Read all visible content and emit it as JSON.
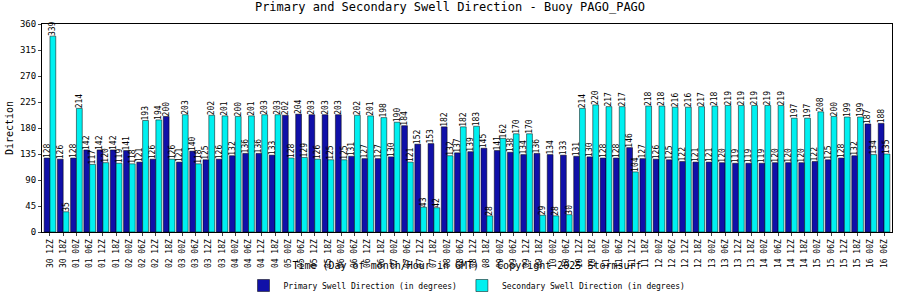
{
  "chart_data": {
    "type": "bar",
    "title": "Primary and Secondary Swell Direction - Buoy PAGO_PAGO",
    "x_label": "Time (Day of month/Hour in GMT) - Copyright 2025 Stormsurf",
    "y_label": "Direction",
    "categories": [
      "30 12Z",
      "30 18Z",
      "01 00Z",
      "01 06Z",
      "01 12Z",
      "01 18Z",
      "02 00Z",
      "02 06Z",
      "02 12Z",
      "02 18Z",
      "03 00Z",
      "03 06Z",
      "03 12Z",
      "03 18Z",
      "04 00Z",
      "04 06Z",
      "04 12Z",
      "04 18Z",
      "05 00Z",
      "05 06Z",
      "05 12Z",
      "05 18Z",
      "06 00Z",
      "06 06Z",
      "06 12Z",
      "06 18Z",
      "07 00Z",
      "07 06Z",
      "07 12Z",
      "07 18Z",
      "08 00Z",
      "08 06Z",
      "08 12Z",
      "08 18Z",
      "09 00Z",
      "09 06Z",
      "09 12Z",
      "09 18Z",
      "10 00Z",
      "10 06Z",
      "10 12Z",
      "10 18Z",
      "11 00Z",
      "11 06Z",
      "11 12Z",
      "11 18Z",
      "12 00Z",
      "12 06Z",
      "12 12Z",
      "12 18Z",
      "13 00Z",
      "13 06Z",
      "13 12Z",
      "13 18Z",
      "14 00Z",
      "14 06Z",
      "14 12Z",
      "14 18Z",
      "15 00Z",
      "15 06Z",
      "15 12Z",
      "15 18Z",
      "16 00Z",
      "16 06Z"
    ],
    "series": [
      {
        "name": "Primary Swell Direction (in degrees)",
        "color": "#1010a8",
        "values": [
          128,
          126,
          128,
          142,
          142,
          142,
          141,
          121,
          126,
          200,
          121,
          140,
          125,
          126,
          132,
          136,
          136,
          133,
          202,
          204,
          203,
          203,
          203,
          131,
          127,
          127,
          130,
          184,
          152,
          153,
          182,
          137,
          139,
          145,
          141,
          138,
          134,
          136,
          134,
          133,
          131,
          130,
          128,
          128,
          146,
          127,
          126,
          125,
          122,
          121,
          121,
          120,
          119,
          119,
          119,
          120,
          120,
          120,
          122,
          125,
          128,
          132,
          187,
          188
        ]
      },
      {
        "name": "Secondary Swell Direction (in degrees)",
        "color": "#00f0f0",
        "values": [
          339,
          35,
          214,
          117,
          120,
          119,
          118,
          193,
          194,
          126,
          203,
          118,
          202,
          201,
          200,
          201,
          203,
          203,
          128,
          129,
          126,
          125,
          125,
          202,
          201,
          198,
          190,
          121,
          43,
          42,
          132,
          182,
          183,
          28,
          162,
          170,
          170,
          29,
          28,
          30,
          214,
          220,
          217,
          217,
          104,
          218,
          218,
          216,
          216,
          217,
          218,
          219,
          219,
          219,
          219,
          219,
          197,
          197,
          208,
          200,
          199,
          199,
          134,
          135
        ]
      }
    ],
    "ylim": [
      0,
      360
    ],
    "yticks": [
      0,
      45,
      90,
      135,
      180,
      225,
      270,
      315,
      360
    ],
    "grid": false,
    "data_labels": true,
    "legend": "bottom"
  }
}
